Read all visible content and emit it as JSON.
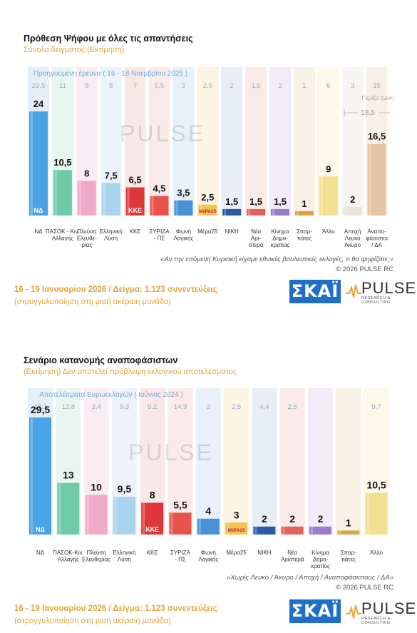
{
  "panel1": {
    "title": "Πρόθεση Ψήφου με όλες τις απαντήσεις",
    "subtitle": "Σύνολο δείγματος   (Εκτίμηση)",
    "prev_label": "Προηγούμενη έρευνα ( 16 - 18 Νοεμβρίου 2025 )",
    "grey_zone_label": "Γκρίζα ζώνη",
    "grey_zone_value": "18,5",
    "question": "«Αν την επόμενη Κυριακή είχαμε εθνικές βουλευτικές εκλογές, τι θα ψηφίζατε;»",
    "copyright": "©  2026  PULSE RC",
    "footer_date": "16 - 19 Ιανουαρίου 2026  /  Δείγμα:  1.123 συνεντεύξεις",
    "footer_note": "(στρογγυλοποίηση στη μισή ακέραιη μονάδα)",
    "skai_logo": "ΣΚΑΪ",
    "pulse_logo": "PULSE",
    "pulse_sub": "RESEARCH & CONSULTING"
  },
  "panel2": {
    "title": "Σενάριο κατανομής αναποφάσιστων",
    "subtitle": "(Εκτίμηση)   Δεν αποτελεί πρόβλεψη εκλογικού αποτελέσματος",
    "prev_label": "Αποτελέσματα Ευρωεκλογών  ( Ιούνιος 2024 )",
    "question": "«Χωρίς Λευκό / Άκυρο / Αποχή / Αναποφάσιστους / ΔΑ»",
    "copyright": "©  2026  PULSE RC",
    "footer_date": "16 - 19 Ιανουαρίου 2026  /  Δείγμα:  1.123 συνεντεύξεις",
    "footer_note": "(στρογγυλοποίηση στη μισή ακέραιη μονάδα)",
    "skai_logo": "ΣΚΑΪ",
    "pulse_logo": "PULSE",
    "pulse_sub": "RESEARCH & CONSULTING"
  },
  "chart_data": [
    {
      "type": "bar",
      "title": "Πρόθεση Ψήφου με όλες τις απαντήσεις",
      "categories": [
        [
          "ΝΔ"
        ],
        [
          "ΠΑΣΟΚ - Κιν.",
          "Αλλαγής"
        ],
        [
          "Πλεύση",
          "Ελευθε-",
          "ρίας"
        ],
        [
          "Ελληνική",
          "Λύση"
        ],
        [
          "ΚΚΕ"
        ],
        [
          "ΣΥΡΙΖΑ",
          "- ΠΣ"
        ],
        [
          "Φωνή",
          "Λογικής"
        ],
        [
          "Μέρα25"
        ],
        [
          "ΝΙΚΗ"
        ],
        [
          "Νέα",
          "Αρι-",
          "στερά"
        ],
        [
          "Κίνημα",
          "Δημο-",
          "κρατίας"
        ],
        [
          "Σπαρ-",
          "τιάτες"
        ],
        [
          "Άλλο"
        ],
        [
          "Αποχή",
          "Λευκό",
          "Άκυρο"
        ],
        [
          "Αναπο-",
          "φάσιστοι",
          "/ ΔΑ"
        ]
      ],
      "series": [
        {
          "values": [
            24,
            10.5,
            8,
            7.5,
            6.5,
            4.5,
            3.5,
            2.5,
            1.5,
            1.5,
            1.5,
            1,
            9,
            2,
            16.5
          ],
          "labels": [
            "24",
            "10,5",
            "8",
            "7,5",
            "6,5",
            "4,5",
            "3,5",
            "2,5",
            "1,5",
            "1,5",
            "1,5",
            "1",
            "9",
            "2",
            "16,5"
          ]
        },
        {
          "name": "Προηγούμενη έρευνα ( 16 - 18 Νοεμβρίου 2025 )",
          "values": [
            23.5,
            11,
            9,
            8,
            7,
            5.5,
            3,
            2.5,
            2,
            1.5,
            2,
            1,
            6,
            3,
            15
          ],
          "labels": [
            "23,5",
            "11",
            "9",
            "8",
            "7",
            "5,5",
            "3",
            "2,5",
            "2",
            "1,5",
            "2",
            "1",
            "6",
            "3",
            "15"
          ]
        }
      ],
      "colors": [
        "#4aa3e6",
        "#6fcaa8",
        "#f0a9c6",
        "#a9d3ee",
        "#e0383a",
        "#e8524d",
        "#4a90d6",
        "#f3c44a",
        "#2c5aa8",
        "#e4605a",
        "#9b7cc9",
        "#d9a441",
        "#f3df92",
        "#e9e4d8",
        "#e5c4a3"
      ],
      "logos": [
        "ΝΔ",
        "",
        "",
        "",
        "ΚΚΕ",
        "",
        "",
        "ΜέΡΑ25",
        "",
        "",
        "",
        "",
        "",
        "",
        ""
      ],
      "ylim": [
        0,
        26
      ]
    },
    {
      "type": "bar",
      "title": "Σενάριο κατανομής αναποφάσιστων",
      "categories": [
        [
          "ΝΔ"
        ],
        [
          "ΠΑΣΟΚ-Κιν.",
          "Αλλαγής"
        ],
        [
          "Πλεύση",
          "Ελευθερίας"
        ],
        [
          "Ελληνική",
          "Λύση"
        ],
        [
          "ΚΚΕ"
        ],
        [
          "ΣΥΡΙΖΑ",
          "- ΠΣ"
        ],
        [
          "Φωνή",
          "Λογικής"
        ],
        [
          "Μέρα25"
        ],
        [
          "ΝΙΚΗ"
        ],
        [
          "Νέα",
          "Αριστερά"
        ],
        [
          "Κίνημα",
          "Δημο-",
          "κρατίας"
        ],
        [
          "Σπαρ-",
          "τιάτες"
        ],
        [
          "Άλλο"
        ]
      ],
      "series": [
        {
          "values": [
            29.5,
            13,
            10,
            9.5,
            8,
            5.5,
            4,
            3,
            2,
            2,
            2,
            1,
            10.5
          ],
          "labels": [
            "29,5",
            "13",
            "10",
            "9,5",
            "8",
            "5,5",
            "4",
            "3",
            "2",
            "2",
            "2",
            "1",
            "10,5"
          ]
        },
        {
          "name": "Αποτελέσματα Ευρωεκλογών  ( Ιούνιος 2024 )",
          "values": [
            28.3,
            12.8,
            3.4,
            9.3,
            9.2,
            14.9,
            3,
            2.5,
            4.4,
            2.5,
            null,
            null,
            9.7
          ],
          "labels": [
            "28,3",
            "12,8",
            "3,4",
            "9,3",
            "9,2",
            "14,9",
            "3",
            "2,5",
            "4,4",
            "2,5",
            "",
            "",
            "9,7"
          ]
        }
      ],
      "colors": [
        "#4aa3e6",
        "#6fcaa8",
        "#f0a9c6",
        "#a9d3ee",
        "#e0383a",
        "#e8524d",
        "#4a90d6",
        "#f3c44a",
        "#2c5aa8",
        "#e4605a",
        "#9b7cc9",
        "#d9a441",
        "#f3df92"
      ],
      "logos": [
        "ΝΔ",
        "",
        "",
        "",
        "ΚΚΕ",
        "",
        "",
        "ΜέΡΑ25",
        "",
        "",
        "",
        "",
        ""
      ],
      "ylim": [
        0,
        32
      ]
    }
  ]
}
